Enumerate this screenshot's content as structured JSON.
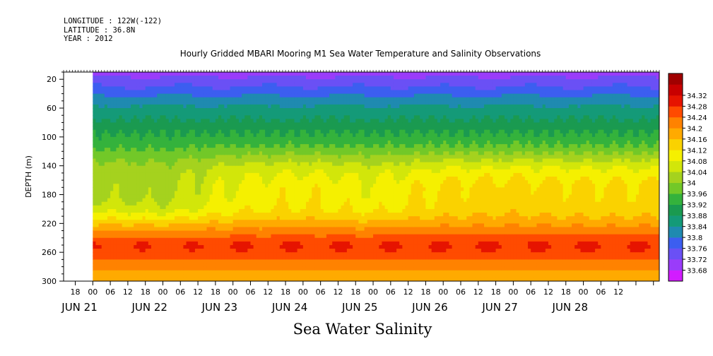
{
  "meta": {
    "longitude": "LONGITUDE : 122W(-122)",
    "latitude": "LATITUDE : 36.8N",
    "year": "YEAR : 2012"
  },
  "chart_data": {
    "type": "heatmap",
    "title": "Hourly Gridded MBARI Mooring M1 Sea Water Temperature and Salinity Observations",
    "bottom_label": "Sea Water Salinity",
    "ylabel": "DEPTH (m)",
    "y_axis": {
      "range": [
        10,
        300
      ],
      "inverted": true,
      "ticks": [
        20,
        60,
        100,
        140,
        180,
        220,
        260,
        300
      ]
    },
    "x_axis": {
      "unit": "hours from JUN 21 00",
      "range": [
        -10,
        194
      ],
      "data_start_hour": 0,
      "hour_tick_labels": [
        {
          "hour": -6,
          "label": "18"
        },
        {
          "hour": 0,
          "label": "00"
        },
        {
          "hour": 6,
          "label": "06"
        },
        {
          "hour": 12,
          "label": "12"
        },
        {
          "hour": 18,
          "label": "18"
        },
        {
          "hour": 24,
          "label": "00"
        },
        {
          "hour": 30,
          "label": "06"
        },
        {
          "hour": 36,
          "label": "12"
        },
        {
          "hour": 42,
          "label": "18"
        },
        {
          "hour": 48,
          "label": "00"
        },
        {
          "hour": 54,
          "label": "06"
        },
        {
          "hour": 60,
          "label": "12"
        },
        {
          "hour": 66,
          "label": "18"
        },
        {
          "hour": 72,
          "label": "00"
        },
        {
          "hour": 78,
          "label": "06"
        },
        {
          "hour": 84,
          "label": "12"
        },
        {
          "hour": 90,
          "label": "18"
        },
        {
          "hour": 96,
          "label": "00"
        },
        {
          "hour": 102,
          "label": "06"
        },
        {
          "hour": 108,
          "label": "12"
        },
        {
          "hour": 114,
          "label": "18"
        },
        {
          "hour": 120,
          "label": "00"
        },
        {
          "hour": 126,
          "label": "06"
        },
        {
          "hour": 132,
          "label": "12"
        },
        {
          "hour": 138,
          "label": "18"
        },
        {
          "hour": 144,
          "label": "00"
        },
        {
          "hour": 150,
          "label": "06"
        },
        {
          "hour": 156,
          "label": "12"
        },
        {
          "hour": 162,
          "label": "18"
        },
        {
          "hour": 168,
          "label": "00"
        },
        {
          "hour": 174,
          "label": "06"
        },
        {
          "hour": 180,
          "label": "12"
        }
      ],
      "date_labels": [
        {
          "hour": -6,
          "label": "JUN 21"
        },
        {
          "hour": 18,
          "label": "JUN 22"
        },
        {
          "hour": 42,
          "label": "JUN 23"
        },
        {
          "hour": 66,
          "label": "JUN 24"
        },
        {
          "hour": 90,
          "label": "JUN 25"
        },
        {
          "hour": 114,
          "label": "JUN 26"
        },
        {
          "hour": 138,
          "label": "JUN 27"
        },
        {
          "hour": 162,
          "label": "JUN 28"
        }
      ]
    },
    "colorbar": {
      "levels": [
        "33.68",
        "33.72",
        "33.76",
        "33.8",
        "33.84",
        "33.88",
        "33.92",
        "33.96",
        "34",
        "34.04",
        "34.08",
        "34.12",
        "34.16",
        "34.2",
        "34.24",
        "34.28",
        "34.32"
      ],
      "colors": [
        "#d21cff",
        "#9a3cfa",
        "#6a50f5",
        "#3c5ef0",
        "#1f8ab0",
        "#149a78",
        "#1a9a50",
        "#34b23c",
        "#72c828",
        "#a5d21e",
        "#d2e60a",
        "#f5f000",
        "#fad200",
        "#ffaa00",
        "#ff8200",
        "#ff4b00",
        "#e61400",
        "#c80000",
        "#a00000"
      ]
    },
    "depth_profile": [
      {
        "depth": 10,
        "salinity": 33.7
      },
      {
        "depth": 20,
        "salinity": 33.73
      },
      {
        "depth": 30,
        "salinity": 33.76
      },
      {
        "depth": 40,
        "salinity": 33.79
      },
      {
        "depth": 50,
        "salinity": 33.82
      },
      {
        "depth": 60,
        "salinity": 33.85
      },
      {
        "depth": 70,
        "salinity": 33.87
      },
      {
        "depth": 80,
        "salinity": 33.89
      },
      {
        "depth": 90,
        "salinity": 33.91
      },
      {
        "depth": 100,
        "salinity": 33.93
      },
      {
        "depth": 110,
        "salinity": 33.95
      },
      {
        "depth": 120,
        "salinity": 33.98
      },
      {
        "depth": 130,
        "salinity": 34.01
      },
      {
        "depth": 140,
        "salinity": 34.04
      },
      {
        "depth": 150,
        "salinity": 34.06
      },
      {
        "depth": 160,
        "salinity": 34.07
      },
      {
        "depth": 170,
        "salinity": 34.08
      },
      {
        "depth": 180,
        "salinity": 34.08
      },
      {
        "depth": 190,
        "salinity": 34.09
      },
      {
        "depth": 200,
        "salinity": 34.1
      },
      {
        "depth": 210,
        "salinity": 34.13
      },
      {
        "depth": 220,
        "salinity": 34.17
      },
      {
        "depth": 230,
        "salinity": 34.21
      },
      {
        "depth": 240,
        "salinity": 34.25
      },
      {
        "depth": 250,
        "salinity": 34.28
      },
      {
        "depth": 260,
        "salinity": 34.27
      },
      {
        "depth": 270,
        "salinity": 34.24
      },
      {
        "depth": 280,
        "salinity": 34.21
      },
      {
        "depth": 290,
        "salinity": 34.19
      },
      {
        "depth": 300,
        "salinity": 34.18
      }
    ],
    "mid_depth_salinity_by_time": [
      {
        "date": "JUN 21 00",
        "salinity_at_180m": 34.03
      },
      {
        "date": "JUN 22 00",
        "salinity_at_180m": 34.02
      },
      {
        "date": "JUN 23 00",
        "salinity_at_180m": 34.09
      },
      {
        "date": "JUN 24 00",
        "salinity_at_180m": 34.11
      },
      {
        "date": "JUN 25 00",
        "salinity_at_180m": 34.09
      },
      {
        "date": "JUN 26 00",
        "salinity_at_180m": 34.13
      },
      {
        "date": "JUN 27 00",
        "salinity_at_180m": 34.14
      },
      {
        "date": "JUN 28 00",
        "salinity_at_180m": 34.13
      }
    ]
  }
}
